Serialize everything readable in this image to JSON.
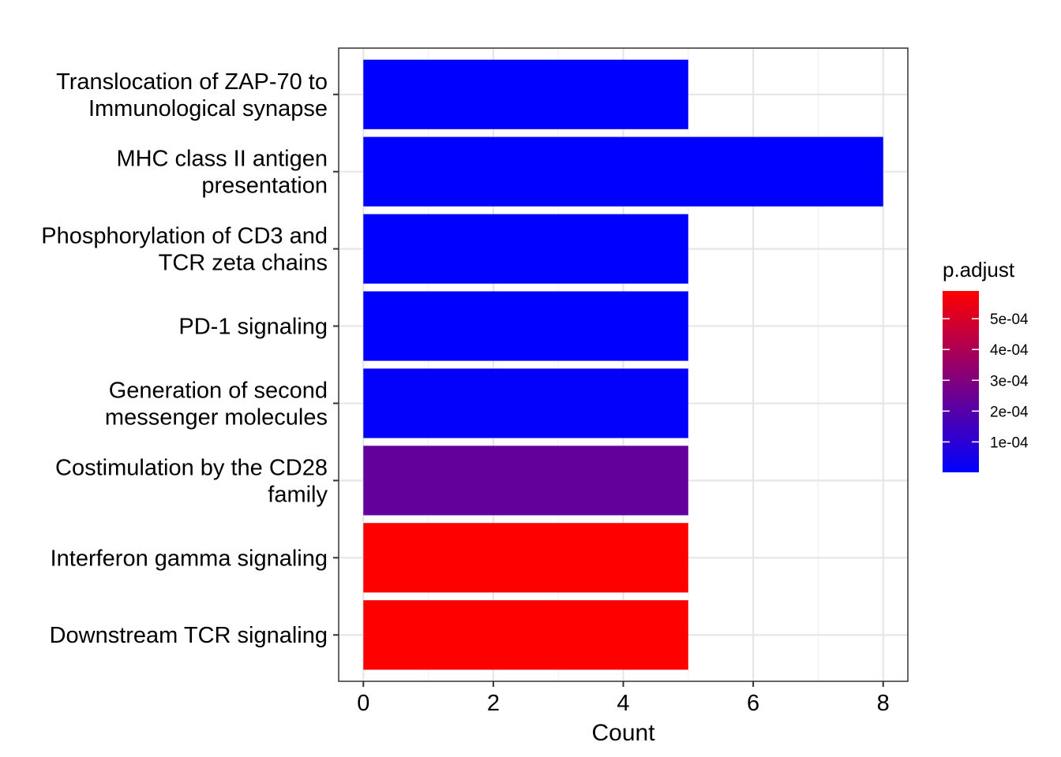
{
  "chart_data": {
    "type": "bar",
    "orientation": "horizontal",
    "categories": [
      "Translocation of ZAP-70 to Immunological synapse",
      "MHC class II antigen presentation",
      "Phosphorylation of CD3 and TCR zeta chains",
      "PD-1 signaling",
      "Generation of second messenger molecules",
      "Costimulation by the CD28 family",
      "Interferon gamma signaling",
      "Downstream TCR signaling"
    ],
    "category_lines": [
      [
        "Translocation of ZAP-70 to",
        "Immunological synapse"
      ],
      [
        "MHC class II antigen",
        "presentation"
      ],
      [
        "Phosphorylation of CD3 and",
        "TCR zeta chains"
      ],
      [
        "PD-1 signaling"
      ],
      [
        "Generation of second",
        "messenger molecules"
      ],
      [
        "Costimulation by the CD28",
        "family"
      ],
      [
        "Interferon gamma signaling"
      ],
      [
        "Downstream TCR signaling"
      ]
    ],
    "values": [
      5,
      8,
      5,
      5,
      5,
      5,
      5,
      5
    ],
    "p_adjust": [
      1.2e-06,
      1.5e-06,
      1.8e-06,
      2e-06,
      8e-06,
      0.00023,
      0.00059,
      0.00059
    ],
    "xlabel": "Count",
    "ylabel": "",
    "xlim": [
      -0.38,
      8.38
    ],
    "x_ticks": [
      "0",
      "2",
      "4",
      "6",
      "8"
    ],
    "x_tick_values": [
      0,
      2,
      4,
      6,
      8
    ],
    "grid": true,
    "legend": {
      "title": "p.adjust",
      "placement": "right",
      "range": [
        1.2e-06,
        0.00059
      ],
      "low_color": "#0000ff",
      "high_color": "#ff0000",
      "tick_values": [
        0.0001,
        0.0002,
        0.0003,
        0.0004,
        0.0005
      ],
      "tick_labels": [
        "1e-04",
        "2e-04",
        "3e-04",
        "4e-04",
        "5e-04"
      ]
    }
  }
}
